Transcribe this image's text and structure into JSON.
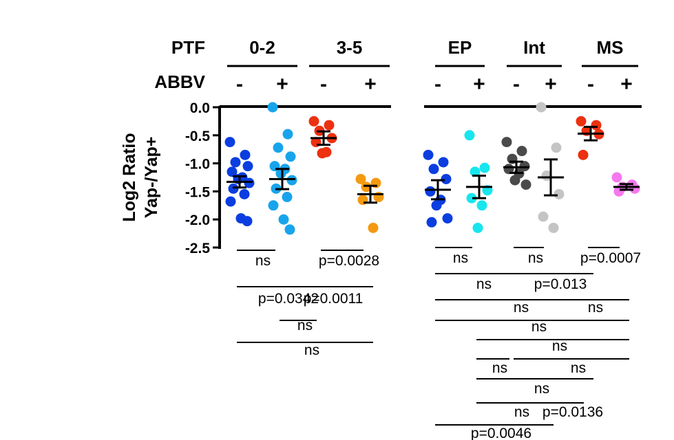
{
  "chart_data": {
    "type": "scatter",
    "ylabel_line1": "Log2 Ratio",
    "ylabel_line2": "Yap-/Yap+",
    "ylim": [
      -2.5,
      0.0
    ],
    "yticks": [
      0.0,
      -0.5,
      -1.0,
      -1.5,
      -2.0,
      -2.5
    ],
    "ytick_labels": [
      "0.0",
      "-0.5",
      "-1.0",
      "-1.5",
      "-2.0",
      "-2.5"
    ],
    "row_labels": {
      "ptf": "PTF",
      "abbv": "ABBV"
    },
    "panels": [
      {
        "groups": [
          {
            "name": "0-2",
            "conditions": [
              {
                "abbv": "-",
                "color": "#0a3ee0",
                "mean": -1.33,
                "err": 0.1,
                "points": [
                  -0.62,
                  -0.85,
                  -0.98,
                  -1.05,
                  -1.15,
                  -1.25,
                  -1.28,
                  -1.35,
                  -1.45,
                  -1.55,
                  -1.68,
                  -1.98,
                  -2.03
                ]
              },
              {
                "abbv": "+",
                "color": "#18a4ec",
                "mean": -1.28,
                "err": 0.18,
                "points": [
                  0.0,
                  -0.48,
                  -0.72,
                  -0.88,
                  -1.05,
                  -1.1,
                  -1.18,
                  -1.3,
                  -1.45,
                  -1.6,
                  -1.75,
                  -2.0,
                  -2.18
                ]
              }
            ]
          },
          {
            "name": "3-5",
            "conditions": [
              {
                "abbv": "-",
                "color": "#ec3010",
                "mean": -0.55,
                "err": 0.12,
                "points": [
                  -0.25,
                  -0.32,
                  -0.42,
                  -0.55,
                  -0.62,
                  -0.8,
                  -0.82
                ]
              },
              {
                "abbv": "+",
                "color": "#f49a10",
                "mean": -1.55,
                "err": 0.15,
                "points": [
                  -1.28,
                  -1.35,
                  -1.42,
                  -1.6,
                  -1.65,
                  -2.15
                ]
              }
            ]
          }
        ]
      },
      {
        "groups": [
          {
            "name": "EP",
            "conditions": [
              {
                "abbv": "-",
                "color": "#0a3ee0",
                "mean": -1.47,
                "err": 0.17,
                "points": [
                  -0.85,
                  -0.98,
                  -1.1,
                  -1.28,
                  -1.5,
                  -1.65,
                  -1.75,
                  -1.98,
                  -2.05
                ]
              },
              {
                "abbv": "+",
                "color": "#18e6ee",
                "mean": -1.42,
                "err": 0.2,
                "points": [
                  -0.5,
                  -1.08,
                  -1.15,
                  -1.48,
                  -1.62,
                  -1.75,
                  -2.15
                ]
              }
            ]
          },
          {
            "name": "Int",
            "conditions": [
              {
                "abbv": "-",
                "color": "#4a4a4a",
                "mean": -1.07,
                "err": 0.1,
                "points": [
                  -0.62,
                  -0.78,
                  -0.92,
                  -1.05,
                  -1.1,
                  -1.18,
                  -1.3,
                  -1.38
                ]
              },
              {
                "abbv": "+",
                "color": "#c4c4c4",
                "mean": -1.25,
                "err": 0.32,
                "points": [
                  0.0,
                  -0.72,
                  -1.22,
                  -1.55,
                  -1.95,
                  -2.15
                ]
              }
            ]
          },
          {
            "name": "MS",
            "conditions": [
              {
                "abbv": "-",
                "color": "#ec3010",
                "mean": -0.47,
                "err": 0.12,
                "points": [
                  -0.25,
                  -0.32,
                  -0.42,
                  -0.48,
                  -0.85
                ]
              },
              {
                "abbv": "+",
                "color": "#f678ee",
                "mean": -1.42,
                "err": 0.05,
                "points": [
                  -1.25,
                  -1.38,
                  -1.42,
                  -1.45,
                  -1.5
                ]
              }
            ]
          }
        ]
      }
    ],
    "comparisons": [
      {
        "panel": 0,
        "from": 0,
        "to": 1,
        "label": "ns"
      },
      {
        "panel": 0,
        "from": 2,
        "to": 3,
        "label": "p=0.0028"
      },
      {
        "panel": 0,
        "from": 0,
        "to": 2,
        "label": "p=0.0342"
      },
      {
        "panel": 0,
        "from": 1,
        "to": 3,
        "label": "p=0.0011"
      },
      {
        "panel": 0,
        "from": 1,
        "to": 2,
        "label": "ns"
      },
      {
        "panel": 0,
        "from": 0,
        "to": 3,
        "label": "ns"
      },
      {
        "panel": 1,
        "from": 0,
        "to": 1,
        "label": "ns"
      },
      {
        "panel": 1,
        "from": 2,
        "to": 3,
        "label": "ns"
      },
      {
        "panel": 1,
        "from": 4,
        "to": 5,
        "label": "p=0.0007"
      },
      {
        "panel": 1,
        "from": 0,
        "to": 2,
        "label": "ns"
      },
      {
        "panel": 1,
        "from": 2,
        "to": 4,
        "label": "p=0.013"
      },
      {
        "panel": 1,
        "from": 0,
        "to": 4,
        "label": "ns"
      },
      {
        "panel": 1,
        "from": 3,
        "to": 5,
        "label": "ns"
      },
      {
        "panel": 1,
        "from": 0,
        "to": 5,
        "label": "ns"
      },
      {
        "panel": 1,
        "from": 1,
        "to": 5,
        "label": "ns"
      },
      {
        "panel": 1,
        "from": 1,
        "to": 2,
        "label": "ns"
      },
      {
        "panel": 1,
        "from": 2,
        "to": 5,
        "label": "ns"
      },
      {
        "panel": 1,
        "from": 1,
        "to": 4,
        "label": "ns"
      },
      {
        "panel": 1,
        "from": 1,
        "to": 3,
        "label": "ns"
      },
      {
        "panel": 1,
        "from": 3,
        "to": 4,
        "label": "p=0.0136"
      },
      {
        "panel": 1,
        "from": 0,
        "to": 3,
        "label": "p=0.0046"
      }
    ]
  }
}
